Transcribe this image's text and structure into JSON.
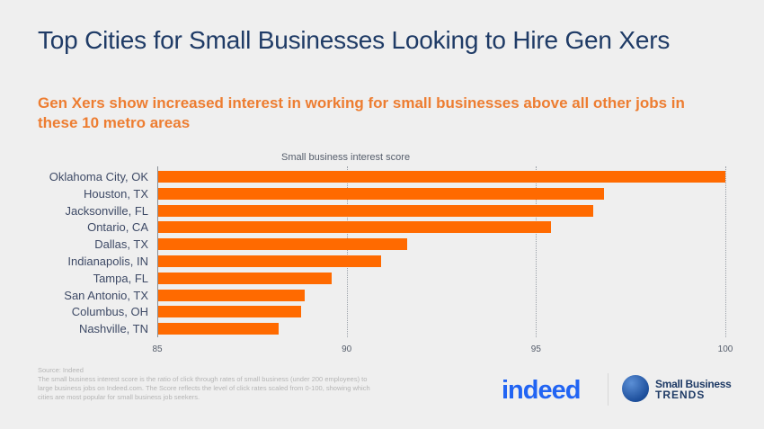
{
  "header": {
    "title": "Top Cities for Small Businesses Looking to Hire Gen Xers",
    "subtitle": "Gen Xers show increased interest in working for small businesses above all other jobs in these 10 metro areas"
  },
  "chart_data": {
    "type": "bar",
    "orientation": "horizontal",
    "title": "Top Cities for Small Businesses Looking to Hire Gen Xers",
    "subtitle": "Gen Xers show increased interest in working for small businesses above all other jobs in these 10 metro areas",
    "xlabel": "Small business interest score",
    "ylabel": "",
    "categories": [
      "Oklahoma City, OK",
      "Houston, TX",
      "Jacksonville, FL",
      "Ontario, CA",
      "Dallas, TX",
      "Indianapolis, IN",
      "Tampa, FL",
      "San Antonio, TX",
      "Columbus, OH",
      "Nashville, TN"
    ],
    "values": [
      100,
      96.8,
      96.5,
      95.4,
      91.6,
      90.9,
      89.6,
      88.9,
      88.8,
      88.2
    ],
    "xlim": [
      85,
      100
    ],
    "xticks": [
      "85",
      "90",
      "95",
      "100"
    ],
    "grid": "vertical dotted",
    "bar_color": "#ff6a00",
    "legend": null
  },
  "footer": {
    "source": "Source: Indeed",
    "note": "The small business interest score is the ratio of click through rates of small business (under 200 employees) to large business jobs on Indeed.com. The Score reflects the level of click rates scaled from 0-100, showing which cities are most popular for small business job seekers."
  },
  "logos": {
    "indeed": "indeed",
    "sbt_line1": "Small Business",
    "sbt_line2": "TRENDS"
  },
  "colors": {
    "title": "#1f3b66",
    "subtitle": "#ed7d31",
    "bar": "#ff6a00",
    "indeed": "#2164f3"
  }
}
